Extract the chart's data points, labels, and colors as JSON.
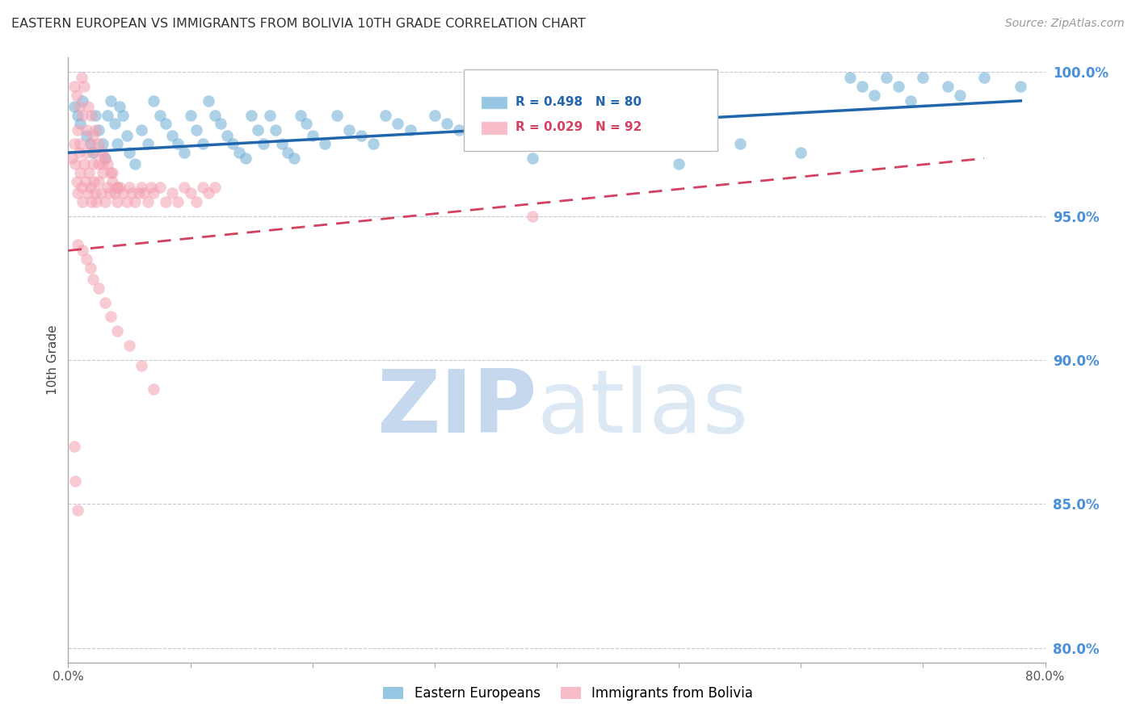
{
  "title": "EASTERN EUROPEAN VS IMMIGRANTS FROM BOLIVIA 10TH GRADE CORRELATION CHART",
  "source": "Source: ZipAtlas.com",
  "ylabel": "10th Grade",
  "xlim": [
    0.0,
    0.8
  ],
  "ylim": [
    0.795,
    1.005
  ],
  "xticks": [
    0.0,
    0.1,
    0.2,
    0.3,
    0.4,
    0.5,
    0.6,
    0.7,
    0.8
  ],
  "xticklabels": [
    "0.0%",
    "",
    "",
    "",
    "",
    "",
    "",
    "",
    "80.0%"
  ],
  "yticks": [
    0.8,
    0.85,
    0.9,
    0.95,
    1.0
  ],
  "yticklabels": [
    "80.0%",
    "85.0%",
    "90.0%",
    "95.0%",
    "100.0%"
  ],
  "blue_color": "#6baed6",
  "pink_color": "#f4a0b0",
  "blue_line_color": "#2166ac",
  "pink_line_color": "#d44060",
  "grid_color": "#c8c8d8",
  "right_label_color": "#4a90d9",
  "title_color": "#333333",
  "watermark_zip_color": "#c5d8ee",
  "watermark_atlas_color": "#dce9f5",
  "R_blue": 0.498,
  "N_blue": 80,
  "R_pink": 0.029,
  "N_pink": 92,
  "legend_label_blue": "Eastern Europeans",
  "legend_label_pink": "Immigrants from Bolivia",
  "blue_line_x0": 0.0,
  "blue_line_y0": 0.972,
  "blue_line_x1": 0.78,
  "blue_line_y1": 0.99,
  "pink_line_x0": 0.0,
  "pink_line_y0": 0.938,
  "pink_line_x1": 0.75,
  "pink_line_y1": 0.97,
  "blue_scatter_x": [
    0.005,
    0.008,
    0.01,
    0.012,
    0.015,
    0.018,
    0.02,
    0.022,
    0.025,
    0.028,
    0.03,
    0.032,
    0.035,
    0.038,
    0.04,
    0.042,
    0.045,
    0.048,
    0.05,
    0.055,
    0.06,
    0.065,
    0.07,
    0.075,
    0.08,
    0.085,
    0.09,
    0.095,
    0.1,
    0.105,
    0.11,
    0.115,
    0.12,
    0.125,
    0.13,
    0.135,
    0.14,
    0.145,
    0.15,
    0.155,
    0.16,
    0.165,
    0.17,
    0.175,
    0.18,
    0.185,
    0.19,
    0.195,
    0.2,
    0.21,
    0.22,
    0.23,
    0.24,
    0.25,
    0.26,
    0.27,
    0.28,
    0.3,
    0.31,
    0.32,
    0.33,
    0.34,
    0.35,
    0.38,
    0.42,
    0.45,
    0.5,
    0.55,
    0.6,
    0.64,
    0.65,
    0.66,
    0.67,
    0.68,
    0.69,
    0.7,
    0.72,
    0.73,
    0.75,
    0.78
  ],
  "blue_scatter_y": [
    0.988,
    0.985,
    0.982,
    0.99,
    0.978,
    0.975,
    0.972,
    0.985,
    0.98,
    0.975,
    0.97,
    0.985,
    0.99,
    0.982,
    0.975,
    0.988,
    0.985,
    0.978,
    0.972,
    0.968,
    0.98,
    0.975,
    0.99,
    0.985,
    0.982,
    0.978,
    0.975,
    0.972,
    0.985,
    0.98,
    0.975,
    0.99,
    0.985,
    0.982,
    0.978,
    0.975,
    0.972,
    0.97,
    0.985,
    0.98,
    0.975,
    0.985,
    0.98,
    0.975,
    0.972,
    0.97,
    0.985,
    0.982,
    0.978,
    0.975,
    0.985,
    0.98,
    0.978,
    0.975,
    0.985,
    0.982,
    0.98,
    0.985,
    0.982,
    0.98,
    0.975,
    0.985,
    0.982,
    0.97,
    0.975,
    0.98,
    0.968,
    0.975,
    0.972,
    0.998,
    0.995,
    0.992,
    0.998,
    0.995,
    0.99,
    0.998,
    0.995,
    0.992,
    0.998,
    0.995
  ],
  "pink_scatter_x": [
    0.003,
    0.005,
    0.006,
    0.007,
    0.008,
    0.009,
    0.01,
    0.011,
    0.012,
    0.013,
    0.014,
    0.015,
    0.016,
    0.017,
    0.018,
    0.019,
    0.02,
    0.021,
    0.022,
    0.023,
    0.025,
    0.027,
    0.028,
    0.03,
    0.032,
    0.034,
    0.036,
    0.038,
    0.04,
    0.042,
    0.045,
    0.048,
    0.05,
    0.052,
    0.055,
    0.058,
    0.06,
    0.062,
    0.065,
    0.068,
    0.07,
    0.075,
    0.08,
    0.085,
    0.09,
    0.095,
    0.1,
    0.105,
    0.11,
    0.115,
    0.12,
    0.008,
    0.01,
    0.012,
    0.015,
    0.018,
    0.02,
    0.022,
    0.025,
    0.028,
    0.03,
    0.035,
    0.04,
    0.005,
    0.007,
    0.009,
    0.011,
    0.013,
    0.016,
    0.019,
    0.022,
    0.025,
    0.028,
    0.032,
    0.036,
    0.04,
    0.008,
    0.012,
    0.015,
    0.018,
    0.02,
    0.025,
    0.03,
    0.035,
    0.04,
    0.05,
    0.06,
    0.07,
    0.38,
    0.005,
    0.006,
    0.008
  ],
  "pink_scatter_y": [
    0.97,
    0.975,
    0.968,
    0.962,
    0.958,
    0.972,
    0.965,
    0.96,
    0.955,
    0.968,
    0.962,
    0.972,
    0.958,
    0.965,
    0.96,
    0.955,
    0.968,
    0.962,
    0.958,
    0.955,
    0.962,
    0.958,
    0.968,
    0.955,
    0.96,
    0.958,
    0.962,
    0.958,
    0.955,
    0.96,
    0.958,
    0.955,
    0.96,
    0.958,
    0.955,
    0.958,
    0.96,
    0.958,
    0.955,
    0.96,
    0.958,
    0.96,
    0.955,
    0.958,
    0.955,
    0.96,
    0.958,
    0.955,
    0.96,
    0.958,
    0.96,
    0.98,
    0.975,
    0.985,
    0.98,
    0.975,
    0.978,
    0.972,
    0.968,
    0.965,
    0.97,
    0.965,
    0.96,
    0.995,
    0.992,
    0.988,
    0.998,
    0.995,
    0.988,
    0.985,
    0.98,
    0.975,
    0.972,
    0.968,
    0.965,
    0.96,
    0.94,
    0.938,
    0.935,
    0.932,
    0.928,
    0.925,
    0.92,
    0.915,
    0.91,
    0.905,
    0.898,
    0.89,
    0.95,
    0.87,
    0.858,
    0.848
  ],
  "figsize": [
    14.06,
    8.92
  ],
  "dpi": 100
}
